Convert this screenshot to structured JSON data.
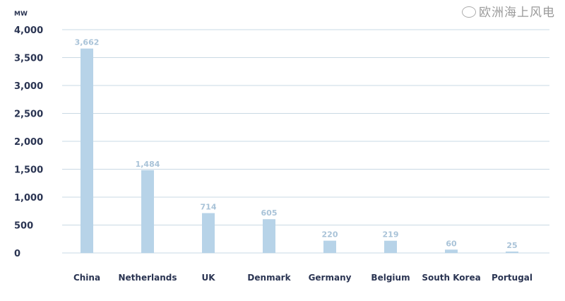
{
  "chart_data": {
    "type": "bar",
    "ylabel": "MW",
    "categories": [
      "China",
      "Netherlands",
      "UK",
      "Denmark",
      "Germany",
      "Belgium",
      "South Korea",
      "Portugal"
    ],
    "values": [
      3662,
      1484,
      714,
      605,
      220,
      219,
      60,
      25
    ],
    "value_labels": [
      "3,662",
      "1,484",
      "714",
      "605",
      "220",
      "219",
      "60",
      "25"
    ],
    "yticks": [
      0,
      500,
      1000,
      1500,
      2000,
      2500,
      3000,
      3500,
      4000
    ],
    "ytick_labels": [
      "0",
      "500",
      "1,000",
      "1,500",
      "2,000",
      "2,500",
      "3,000",
      "3,500",
      "4,000"
    ],
    "ylim": [
      0,
      4000
    ],
    "grid": true,
    "colors": {
      "bar": "#b7d3e8",
      "value_label": "#a9c3d8",
      "axis_text": "#2a3452",
      "grid": "#c9d9e4"
    }
  },
  "watermark": "欧洲海上风电"
}
